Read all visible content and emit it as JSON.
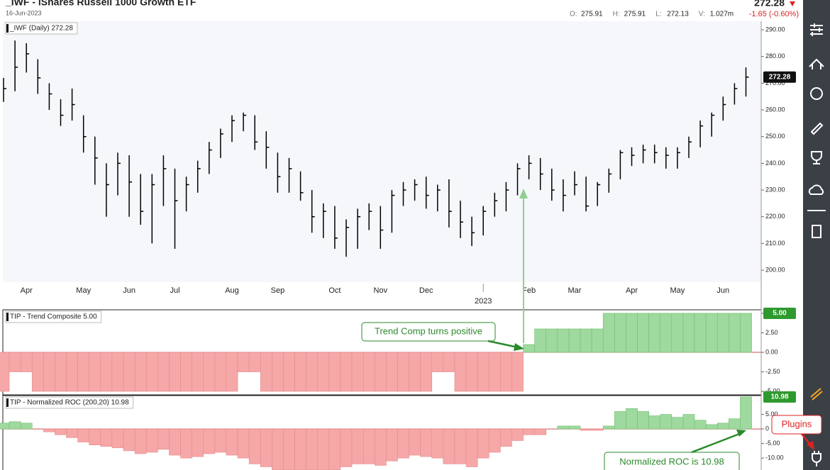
{
  "header": {
    "title": "_IWF - iShares Russell 1000 Growth ETF",
    "date": "16-Jun-2023",
    "last": "272.28",
    "change": "-1.65 (-0.60%)",
    "quote": [
      {
        "label": "O:",
        "value": "275.91"
      },
      {
        "label": "H:",
        "value": "275.91"
      },
      {
        "label": "L:",
        "value": "272.13"
      },
      {
        "label": "V:",
        "value": "1.027m"
      }
    ]
  },
  "annotations": [
    "Trend Comp turns positive",
    "Normalized ROC is 10.98",
    "Plugins"
  ],
  "chart_data": [
    {
      "type": "ohlc",
      "title": "_IWF (Daily) 272.28",
      "last_label": "272.28",
      "color": "#000000",
      "categories": [
        null,
        null,
        "Apr",
        null,
        null,
        null,
        null,
        "May",
        null,
        null,
        null,
        "Jun",
        null,
        null,
        null,
        "Jul",
        null,
        null,
        null,
        null,
        "Aug",
        null,
        null,
        null,
        "Sep",
        null,
        null,
        null,
        null,
        "Oct",
        null,
        null,
        null,
        "Nov",
        null,
        null,
        null,
        "Dec",
        null,
        null,
        null,
        null,
        "2023",
        null,
        null,
        null,
        "Feb",
        null,
        null,
        null,
        "Mar",
        null,
        null,
        null,
        null,
        "Apr",
        null,
        null,
        null,
        "May",
        null,
        null,
        null,
        "Jun",
        null,
        null
      ],
      "high": [
        272,
        286,
        285,
        279,
        270,
        264,
        268,
        258,
        250,
        240,
        244,
        243,
        236,
        236,
        243,
        238,
        235,
        241,
        248,
        253,
        258,
        259,
        258,
        252,
        244,
        242,
        237,
        230,
        225,
        224,
        219,
        223,
        225,
        224,
        230,
        233,
        234,
        235,
        232,
        234,
        226,
        220,
        224,
        229,
        233,
        240,
        243,
        242,
        238,
        234,
        237,
        235,
        233,
        238,
        245,
        246,
        247,
        247,
        246,
        246,
        250,
        256,
        259,
        265,
        270,
        275.91
      ],
      "low": [
        263,
        267,
        274,
        266,
        260,
        254,
        256,
        244,
        232,
        220,
        228,
        220,
        217,
        210,
        224,
        208,
        222,
        229,
        236,
        242,
        248,
        252,
        245,
        238,
        229,
        229,
        226,
        214,
        212,
        208,
        205,
        208,
        215,
        208,
        214,
        224,
        226,
        223,
        222,
        216,
        212,
        209,
        213,
        220,
        222,
        228,
        234,
        230,
        226,
        222,
        228,
        222,
        224,
        229,
        234,
        239,
        240,
        240,
        238,
        238,
        242,
        246,
        250,
        256,
        262,
        265
      ],
      "close": [
        268,
        276,
        281,
        272,
        266,
        258,
        262,
        250,
        242,
        232,
        240,
        233,
        222,
        232,
        238,
        226,
        232,
        238,
        245,
        251,
        256,
        258,
        248,
        246,
        235,
        238,
        229,
        220,
        222,
        212,
        216,
        220,
        222,
        215,
        228,
        230,
        232,
        228,
        230,
        222,
        218,
        214,
        222,
        226,
        230,
        238,
        240,
        236,
        230,
        228,
        232,
        224,
        232,
        236,
        244,
        243,
        245,
        244,
        243,
        244,
        248,
        254,
        258,
        262,
        268,
        272.28
      ],
      "ylim": [
        195.5,
        293.2
      ],
      "yticks": [
        {
          "value": 200,
          "label": "200.00"
        },
        {
          "value": 210,
          "label": "210.00"
        },
        {
          "value": 220,
          "label": "220.00"
        },
        {
          "value": 230,
          "label": "230.00"
        },
        {
          "value": 240,
          "label": "240.00"
        },
        {
          "value": 250,
          "label": "250.00"
        },
        {
          "value": 260,
          "label": "260.00"
        },
        {
          "value": 270,
          "label": "270.00"
        },
        {
          "value": 280,
          "label": "280.00"
        },
        {
          "value": 290,
          "label": "290.00"
        }
      ]
    },
    {
      "type": "histogram",
      "title": "TIP - Trend Composite 5.00",
      "last_label": "5.00",
      "color": "#9fd99f",
      "negative_color": "#f6a7a7",
      "values": [
        -5,
        -2.5,
        -2.5,
        -5,
        -5,
        -5,
        -5,
        -5,
        -5,
        -5,
        -5,
        -5,
        -5,
        -5,
        -5,
        -5,
        -5,
        -5,
        -5,
        -5,
        -5,
        -2.5,
        -2.5,
        -5,
        -5,
        -5,
        -5,
        -5,
        -5,
        -5,
        -5,
        -5,
        -5,
        -5,
        -5,
        -5,
        -5,
        -5,
        -2.5,
        -2.5,
        -5,
        -5,
        -5,
        -5,
        -5,
        -5,
        1,
        3,
        3,
        3,
        3,
        3,
        3,
        5,
        5,
        5,
        5,
        5,
        5,
        5,
        5,
        5,
        5,
        5,
        5,
        5
      ],
      "ylim": [
        -5.45,
        5.45
      ],
      "yticks": [
        {
          "value": 5,
          "label": "5.00"
        },
        {
          "value": 2.5,
          "label": "2.50"
        },
        {
          "value": 0,
          "label": "0.00"
        },
        {
          "value": -2.5,
          "label": "-2.50"
        },
        {
          "value": -5,
          "label": "-5.00"
        }
      ]
    },
    {
      "type": "histogram",
      "title": "TIP - Normalized ROC (200,20) 10.98",
      "last_label": "10.98",
      "color": "#9fd99f",
      "negative_color": "#f6a7a7",
      "values": [
        2,
        2.5,
        2,
        0,
        -1,
        -2,
        -3,
        -4.5,
        -5.5,
        -6,
        -6.5,
        -7.5,
        -8.5,
        -8,
        -7,
        -9,
        -10,
        -9.5,
        -8.5,
        -8,
        -9,
        -10,
        -12,
        -13,
        -14,
        -14,
        -14,
        -14,
        -14,
        -14,
        -13,
        -12,
        -12,
        -12.5,
        -11,
        -10,
        -9,
        -9.5,
        -10,
        -12,
        -12,
        -13,
        -10,
        -8,
        -6,
        -4,
        -2,
        -2,
        0,
        1,
        1,
        -0.5,
        -0.5,
        1,
        6,
        7,
        6,
        4.5,
        5,
        4,
        5,
        3,
        1.5,
        2,
        3.5,
        10.98
      ],
      "ylim": [
        -14.1,
        11.46
      ],
      "yticks": [
        {
          "value": 5,
          "label": "5.00"
        },
        0,
        {
          "value": -5,
          "label": "-5.00"
        },
        {
          "value": -10,
          "label": "-10.00"
        }
      ]
    }
  ]
}
